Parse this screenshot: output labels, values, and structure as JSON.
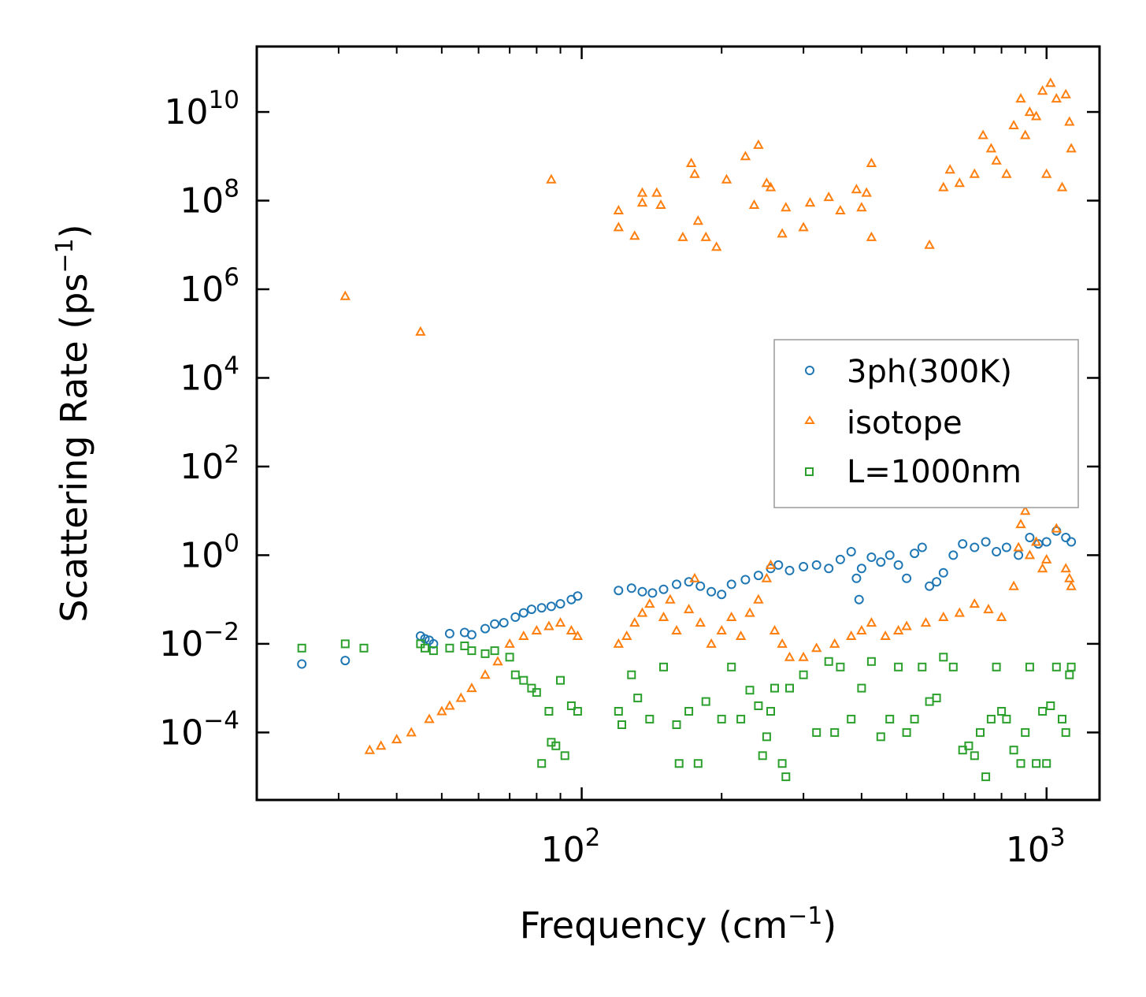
{
  "chart_data": {
    "type": "scatter",
    "title": "",
    "xlabel": "Frequency (cm",
    "xlabel_sup": "−1",
    "xlabel_end": ")",
    "ylabel": "Scattering Rate (ps",
    "ylabel_sup": "−1",
    "ylabel_end": ")",
    "xscale": "log",
    "yscale": "log",
    "xlim": [
      20,
      1300
    ],
    "ylim": [
      3e-06,
      300000000000
    ],
    "x_ticks": [
      {
        "value": 100,
        "base": "10",
        "exp": "2"
      },
      {
        "value": 1000,
        "base": "10",
        "exp": "3"
      }
    ],
    "y_ticks": [
      {
        "value": 0.0001,
        "base": "10",
        "exp": "−4"
      },
      {
        "value": 0.01,
        "base": "10",
        "exp": "−2"
      },
      {
        "value": 1,
        "base": "10",
        "exp": "0"
      },
      {
        "value": 100,
        "base": "10",
        "exp": "2"
      },
      {
        "value": 10000,
        "base": "10",
        "exp": "4"
      },
      {
        "value": 1000000,
        "base": "10",
        "exp": "6"
      },
      {
        "value": 100000000,
        "base": "10",
        "exp": "8"
      },
      {
        "value": 10000000000,
        "base": "10",
        "exp": "10"
      }
    ],
    "legend_position": "center-right",
    "series": [
      {
        "name": "3ph(300K)",
        "marker": "circle",
        "color": "#1f77b4",
        "points": [
          [
            25,
            0.0035
          ],
          [
            31,
            0.0042
          ],
          [
            45,
            0.015
          ],
          [
            46,
            0.013
          ],
          [
            47,
            0.012
          ],
          [
            48,
            0.01
          ],
          [
            52,
            0.017
          ],
          [
            56,
            0.018
          ],
          [
            58,
            0.016
          ],
          [
            62,
            0.022
          ],
          [
            65,
            0.028
          ],
          [
            68,
            0.03
          ],
          [
            72,
            0.04
          ],
          [
            75,
            0.05
          ],
          [
            78,
            0.06
          ],
          [
            82,
            0.065
          ],
          [
            86,
            0.07
          ],
          [
            90,
            0.08
          ],
          [
            95,
            0.1
          ],
          [
            98,
            0.12
          ],
          [
            120,
            0.16
          ],
          [
            128,
            0.18
          ],
          [
            135,
            0.15
          ],
          [
            142,
            0.14
          ],
          [
            150,
            0.17
          ],
          [
            160,
            0.22
          ],
          [
            170,
            0.25
          ],
          [
            180,
            0.2
          ],
          [
            190,
            0.15
          ],
          [
            200,
            0.13
          ],
          [
            210,
            0.22
          ],
          [
            225,
            0.28
          ],
          [
            240,
            0.35
          ],
          [
            255,
            0.5
          ],
          [
            265,
            0.6
          ],
          [
            280,
            0.45
          ],
          [
            300,
            0.55
          ],
          [
            320,
            0.6
          ],
          [
            340,
            0.5
          ],
          [
            360,
            0.8
          ],
          [
            380,
            1.2
          ],
          [
            390,
            0.3
          ],
          [
            395,
            0.1
          ],
          [
            400,
            0.5
          ],
          [
            420,
            0.9
          ],
          [
            440,
            0.7
          ],
          [
            460,
            1.0
          ],
          [
            480,
            0.6
          ],
          [
            500,
            0.3
          ],
          [
            520,
            1.1
          ],
          [
            540,
            1.5
          ],
          [
            560,
            0.2
          ],
          [
            580,
            0.25
          ],
          [
            600,
            0.4
          ],
          [
            630,
            1.0
          ],
          [
            660,
            1.8
          ],
          [
            700,
            1.5
          ],
          [
            740,
            2.0
          ],
          [
            780,
            1.2
          ],
          [
            820,
            1.5
          ],
          [
            870,
            1.0
          ],
          [
            920,
            2.5
          ],
          [
            960,
            1.8
          ],
          [
            1000,
            2.0
          ],
          [
            1050,
            3.5
          ],
          [
            1100,
            2.5
          ],
          [
            1130,
            2.0
          ]
        ]
      },
      {
        "name": "isotope",
        "marker": "triangle",
        "color": "#ff7f0e",
        "points": [
          [
            31,
            700000
          ],
          [
            45,
            110000
          ],
          [
            86,
            300000000
          ],
          [
            120,
            25000000
          ],
          [
            120,
            60000000
          ],
          [
            130,
            16000000
          ],
          [
            135,
            150000000
          ],
          [
            135,
            90000000
          ],
          [
            145,
            150000000
          ],
          [
            148,
            80000000
          ],
          [
            165,
            15000000
          ],
          [
            172,
            700000000
          ],
          [
            175,
            400000000
          ],
          [
            178,
            35000000
          ],
          [
            185,
            15000000
          ],
          [
            195,
            9000000
          ],
          [
            205,
            300000000
          ],
          [
            225,
            1000000000
          ],
          [
            235,
            80000000
          ],
          [
            240,
            1800000000
          ],
          [
            250,
            250000000
          ],
          [
            255,
            200000000
          ],
          [
            270,
            18000000
          ],
          [
            275,
            70000000
          ],
          [
            300,
            25000000
          ],
          [
            310,
            90000000
          ],
          [
            340,
            120000000
          ],
          [
            360,
            60000000
          ],
          [
            390,
            180000000
          ],
          [
            400,
            70000000
          ],
          [
            410,
            150000000
          ],
          [
            420,
            700000000
          ],
          [
            420,
            15000000
          ],
          [
            560,
            10000000
          ],
          [
            600,
            200000000
          ],
          [
            620,
            500000000
          ],
          [
            650,
            250000000
          ],
          [
            700,
            400000000
          ],
          [
            730,
            3000000000
          ],
          [
            760,
            1500000000
          ],
          [
            780,
            800000000
          ],
          [
            820,
            400000000
          ],
          [
            850,
            5000000000
          ],
          [
            880,
            20000000000
          ],
          [
            900,
            3000000000
          ],
          [
            920,
            10000000000
          ],
          [
            950,
            8000000000
          ],
          [
            980,
            30000000000
          ],
          [
            1000,
            400000000
          ],
          [
            1020,
            45000000000
          ],
          [
            1050,
            20000000000
          ],
          [
            1080,
            200000000
          ],
          [
            1100,
            25000000000
          ],
          [
            1120,
            6000000000
          ],
          [
            1130,
            1500000000
          ],
          [
            35,
            4e-05
          ],
          [
            37,
            5e-05
          ],
          [
            40,
            7e-05
          ],
          [
            43,
            0.0001
          ],
          [
            47,
            0.0002
          ],
          [
            50,
            0.0003
          ],
          [
            52,
            0.0004
          ],
          [
            55,
            0.0006
          ],
          [
            58,
            0.001
          ],
          [
            62,
            0.002
          ],
          [
            66,
            0.004
          ],
          [
            70,
            0.01
          ],
          [
            75,
            0.015
          ],
          [
            80,
            0.02
          ],
          [
            85,
            0.025
          ],
          [
            90,
            0.03
          ],
          [
            95,
            0.02
          ],
          [
            98,
            0.015
          ],
          [
            120,
            0.01
          ],
          [
            125,
            0.015
          ],
          [
            130,
            0.03
          ],
          [
            135,
            0.05
          ],
          [
            140,
            0.08
          ],
          [
            150,
            0.04
          ],
          [
            155,
            0.1
          ],
          [
            160,
            0.02
          ],
          [
            170,
            0.06
          ],
          [
            175,
            0.3
          ],
          [
            180,
            0.03
          ],
          [
            190,
            0.01
          ],
          [
            200,
            0.02
          ],
          [
            210,
            0.04
          ],
          [
            220,
            0.015
          ],
          [
            230,
            0.05
          ],
          [
            240,
            0.1
          ],
          [
            250,
            0.3
          ],
          [
            255,
            0.6
          ],
          [
            260,
            0.02
          ],
          [
            270,
            0.01
          ],
          [
            280,
            0.005
          ],
          [
            300,
            0.005
          ],
          [
            320,
            0.008
          ],
          [
            350,
            0.01
          ],
          [
            380,
            0.015
          ],
          [
            400,
            0.02
          ],
          [
            420,
            0.03
          ],
          [
            450,
            0.015
          ],
          [
            480,
            0.02
          ],
          [
            500,
            0.025
          ],
          [
            550,
            0.03
          ],
          [
            600,
            0.04
          ],
          [
            650,
            0.05
          ],
          [
            700,
            0.08
          ],
          [
            750,
            0.06
          ],
          [
            800,
            0.04
          ],
          [
            850,
            0.2
          ],
          [
            870,
            1.5
          ],
          [
            880,
            5.0
          ],
          [
            900,
            10.0
          ],
          [
            920,
            1.0
          ],
          [
            950,
            2.0
          ],
          [
            980,
            0.5
          ],
          [
            1000,
            0.8
          ],
          [
            1050,
            4.0
          ],
          [
            1100,
            0.5
          ],
          [
            1120,
            0.3
          ],
          [
            1130,
            0.2
          ]
        ]
      },
      {
        "name": "L=1000nm",
        "marker": "square",
        "color": "#2ca02c",
        "points": [
          [
            25,
            0.008
          ],
          [
            31,
            0.01
          ],
          [
            34,
            0.008
          ],
          [
            45,
            0.01
          ],
          [
            46,
            0.008
          ],
          [
            48,
            0.007
          ],
          [
            52,
            0.008
          ],
          [
            56,
            0.009
          ],
          [
            58,
            0.007
          ],
          [
            62,
            0.006
          ],
          [
            65,
            0.007
          ],
          [
            70,
            0.005
          ],
          [
            72,
            0.002
          ],
          [
            75,
            0.0015
          ],
          [
            78,
            0.001
          ],
          [
            80,
            0.0008
          ],
          [
            82,
            2e-05
          ],
          [
            85,
            0.0003
          ],
          [
            86,
            6e-05
          ],
          [
            88,
            5e-05
          ],
          [
            90,
            0.0015
          ],
          [
            92,
            3e-05
          ],
          [
            95,
            0.0004
          ],
          [
            98,
            0.0003
          ],
          [
            120,
            0.0003
          ],
          [
            122,
            0.00015
          ],
          [
            128,
            0.002
          ],
          [
            132,
            0.0006
          ],
          [
            140,
            0.0002
          ],
          [
            150,
            0.003
          ],
          [
            160,
            0.00015
          ],
          [
            162,
            2e-05
          ],
          [
            170,
            0.0003
          ],
          [
            178,
            2e-05
          ],
          [
            185,
            0.0005
          ],
          [
            200,
            0.0002
          ],
          [
            210,
            0.003
          ],
          [
            220,
            0.0002
          ],
          [
            230,
            0.0009
          ],
          [
            240,
            0.0004
          ],
          [
            245,
            3e-05
          ],
          [
            250,
            8e-05
          ],
          [
            255,
            0.0003
          ],
          [
            260,
            0.001
          ],
          [
            270,
            2e-05
          ],
          [
            275,
            1e-05
          ],
          [
            280,
            0.001
          ],
          [
            300,
            0.002
          ],
          [
            320,
            0.0001
          ],
          [
            340,
            0.004
          ],
          [
            350,
            0.0001
          ],
          [
            360,
            0.003
          ],
          [
            380,
            0.0002
          ],
          [
            400,
            0.001
          ],
          [
            420,
            0.004
          ],
          [
            440,
            8e-05
          ],
          [
            460,
            0.0002
          ],
          [
            480,
            0.003
          ],
          [
            500,
            0.0001
          ],
          [
            520,
            0.0002
          ],
          [
            540,
            0.003
          ],
          [
            560,
            0.0005
          ],
          [
            580,
            0.0006
          ],
          [
            600,
            0.005
          ],
          [
            630,
            0.003
          ],
          [
            660,
            4e-05
          ],
          [
            680,
            5e-05
          ],
          [
            700,
            3e-05
          ],
          [
            720,
            0.0001
          ],
          [
            740,
            1e-05
          ],
          [
            760,
            0.0002
          ],
          [
            780,
            0.003
          ],
          [
            800,
            0.0003
          ],
          [
            820,
            0.0002
          ],
          [
            850,
            4e-05
          ],
          [
            880,
            2e-05
          ],
          [
            900,
            0.0001
          ],
          [
            920,
            0.003
          ],
          [
            950,
            2e-05
          ],
          [
            980,
            0.0003
          ],
          [
            1000,
            2e-05
          ],
          [
            1020,
            0.0004
          ],
          [
            1050,
            0.003
          ],
          [
            1080,
            0.0002
          ],
          [
            1100,
            0.0001
          ],
          [
            1120,
            0.002
          ],
          [
            1130,
            0.003
          ]
        ]
      }
    ]
  }
}
